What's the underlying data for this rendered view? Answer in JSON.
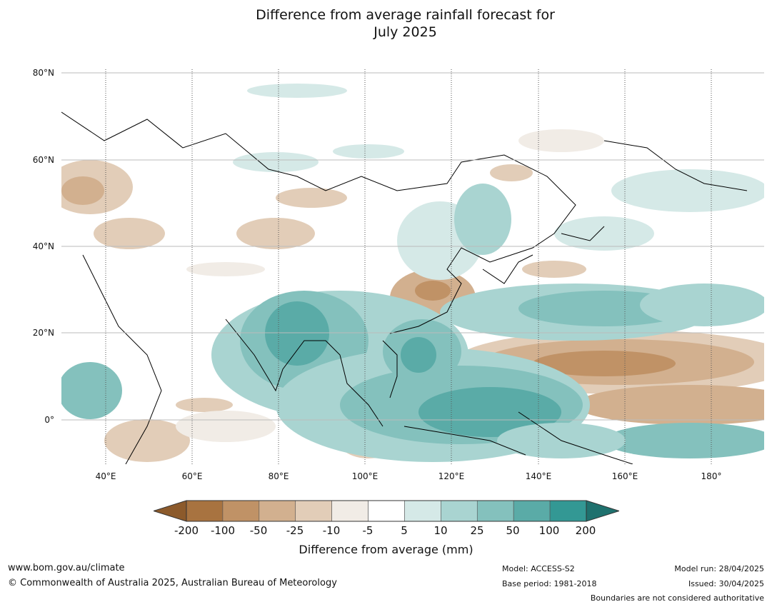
{
  "title": {
    "line1": "Difference from average rainfall forecast for",
    "line2": "July 2025"
  },
  "axes": {
    "lat_labels": [
      "80°N",
      "60°N",
      "40°N",
      "20°N",
      "0°"
    ],
    "lon_labels": [
      "40°E",
      "60°E",
      "80°E",
      "100°E",
      "120°E",
      "140°E",
      "160°E",
      "180°"
    ]
  },
  "colorbar": {
    "ticks": [
      "-200",
      "-100",
      "-50",
      "-25",
      "-10",
      "-5",
      "5",
      "10",
      "25",
      "50",
      "100",
      "200"
    ],
    "colors": [
      "#8c5a2b",
      "#a87340",
      "#c09266",
      "#d2b08f",
      "#e2cdb8",
      "#f1ece6",
      "#ffffff",
      "#d5e9e7",
      "#a9d4d1",
      "#84c1bd",
      "#5aaba7",
      "#339894",
      "#1f716e"
    ],
    "label": "Difference from average (mm)"
  },
  "footer": {
    "website": "www.bom.gov.au/climate",
    "copyright": "© Commonwealth of Australia 2025, Australian Bureau of Meteorology",
    "model": "Model: ACCESS-S2",
    "base_period": "Base period: 1981-2018",
    "model_run": "Model run: 28/04/2025",
    "issued": "Issued: 30/04/2025",
    "disclaimer": "Boundaries are not considered authoritative"
  }
}
